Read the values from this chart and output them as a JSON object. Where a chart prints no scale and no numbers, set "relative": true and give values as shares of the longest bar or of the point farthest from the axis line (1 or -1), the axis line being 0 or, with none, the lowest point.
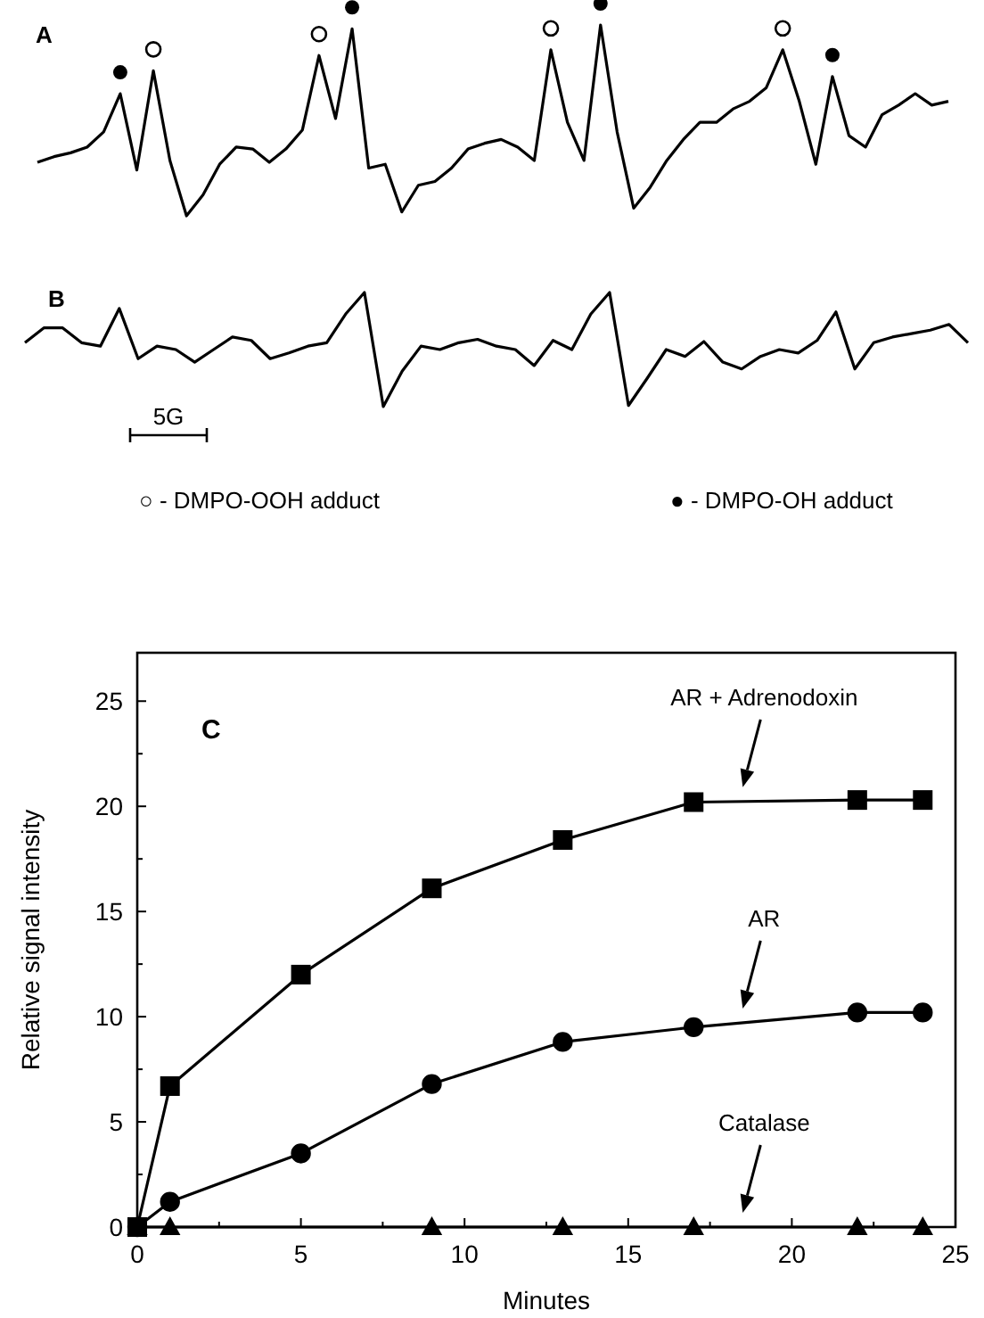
{
  "chart_data": [
    {
      "type": "line",
      "relative": true,
      "title": "A",
      "annotations": [
        "○ - DMPO-OOH adduct",
        "● - DMPO-OH adduct"
      ],
      "categories": [
        null,
        null,
        null,
        null,
        null,
        null,
        null,
        null,
        null,
        null,
        null,
        null,
        null,
        null,
        null,
        null,
        null,
        null,
        null,
        null,
        null,
        null,
        null,
        null,
        null,
        null,
        null,
        null,
        null,
        null,
        null,
        null,
        null,
        null,
        null,
        null,
        null,
        null,
        null,
        null,
        null,
        null,
        null,
        null,
        null,
        null,
        null,
        null,
        null,
        null,
        null,
        null,
        null,
        null,
        null,
        null
      ],
      "series": [
        {
          "type": "line",
          "marker": "none",
          "color": "#000000",
          "values": [
            0.28,
            0.31,
            0.33,
            0.36,
            0.44,
            0.64,
            0.24,
            0.76,
            0.29,
            0,
            0.11,
            0.27,
            0.36,
            0.35,
            0.28,
            0.35,
            0.45,
            0.84,
            0.51,
            0.98,
            0.25,
            0.27,
            0.02,
            0.16,
            0.18,
            0.25,
            0.35,
            0.38,
            0.4,
            0.36,
            0.29,
            0.87,
            0.49,
            0.29,
            1,
            0.44,
            0.04,
            0.15,
            0.29,
            0.4,
            0.49,
            0.49,
            0.56,
            0.6,
            0.67,
            0.87,
            0.6,
            0.27,
            0.73,
            0.42,
            0.36,
            0.53,
            0.58,
            0.64,
            0.58,
            0.6
          ]
        }
      ]
    },
    {
      "type": "line",
      "relative": true,
      "title": "B",
      "annotations": [
        "5G"
      ],
      "categories": [
        null,
        null,
        null,
        null,
        null,
        null,
        null,
        null,
        null,
        null,
        null,
        null,
        null,
        null,
        null,
        null,
        null,
        null,
        null,
        null,
        null,
        null,
        null,
        null,
        null,
        null,
        null,
        null,
        null,
        null,
        null,
        null,
        null,
        null,
        null,
        null,
        null,
        null,
        null,
        null,
        null,
        null,
        null,
        null,
        null,
        null,
        null,
        null,
        null,
        null,
        null
      ],
      "series": [
        {
          "type": "line",
          "marker": "none",
          "color": "#000000",
          "values": [
            0.56,
            0.69,
            0.69,
            0.56,
            0.53,
            0.86,
            0.42,
            0.53,
            0.5,
            0.39,
            0.5,
            0.61,
            0.58,
            0.42,
            0.47,
            0.53,
            0.56,
            0.81,
            1,
            0,
            0.31,
            0.53,
            0.5,
            0.56,
            0.59,
            0.53,
            0.5,
            0.36,
            0.58,
            0.5,
            0.81,
            1,
            0.01,
            0.25,
            0.5,
            0.44,
            0.57,
            0.39,
            0.33,
            0.44,
            0.5,
            0.47,
            0.58,
            0.83,
            0.33,
            0.56,
            0.61,
            0.64,
            0.67,
            0.72,
            0.56
          ]
        }
      ]
    },
    {
      "type": "line",
      "title": "C",
      "xlabel": "Minutes",
      "ylabel": "Relative signal intensity",
      "xlim": [
        0,
        25
      ],
      "ylim": [
        0,
        27.3
      ],
      "xticks": [
        0,
        {
          "value": 2.5,
          "label": null
        },
        5,
        {
          "value": 7.5,
          "label": null
        },
        10,
        {
          "value": 12.5,
          "label": null
        },
        15,
        {
          "value": 17.5,
          "label": null
        },
        20,
        {
          "value": 22.5,
          "label": null
        },
        25
      ],
      "yticks": [
        0,
        {
          "value": 2.5,
          "label": null
        },
        5,
        {
          "value": 7.5,
          "label": null
        },
        10,
        {
          "value": 12.5,
          "label": null
        },
        15,
        {
          "value": 17.5,
          "label": null
        },
        20,
        {
          "value": 22.5,
          "label": null
        },
        25
      ],
      "annotations": [
        "AR + Adrenodoxin",
        "AR",
        "Catalase"
      ],
      "series": [
        {
          "type": "line",
          "marker": "square",
          "color": "#000000",
          "x": [
            0,
            1,
            5,
            9,
            13,
            17,
            22,
            24
          ],
          "values": [
            0,
            6.7,
            12,
            16.1,
            18.4,
            20.2,
            20.3,
            20.3
          ]
        },
        {
          "type": "line",
          "marker": "circle",
          "color": "#000000",
          "x": [
            0,
            1,
            5,
            9,
            13,
            17,
            22,
            24
          ],
          "values": [
            0,
            1.2,
            3.5,
            6.8,
            8.8,
            9.5,
            10.2,
            10.2
          ]
        },
        {
          "type": "line",
          "marker": "triangle",
          "color": "#000000",
          "x": [
            0,
            1,
            9,
            13,
            17,
            22,
            24
          ],
          "values": [
            0,
            0,
            0,
            0,
            0,
            0,
            0
          ]
        }
      ]
    }
  ]
}
